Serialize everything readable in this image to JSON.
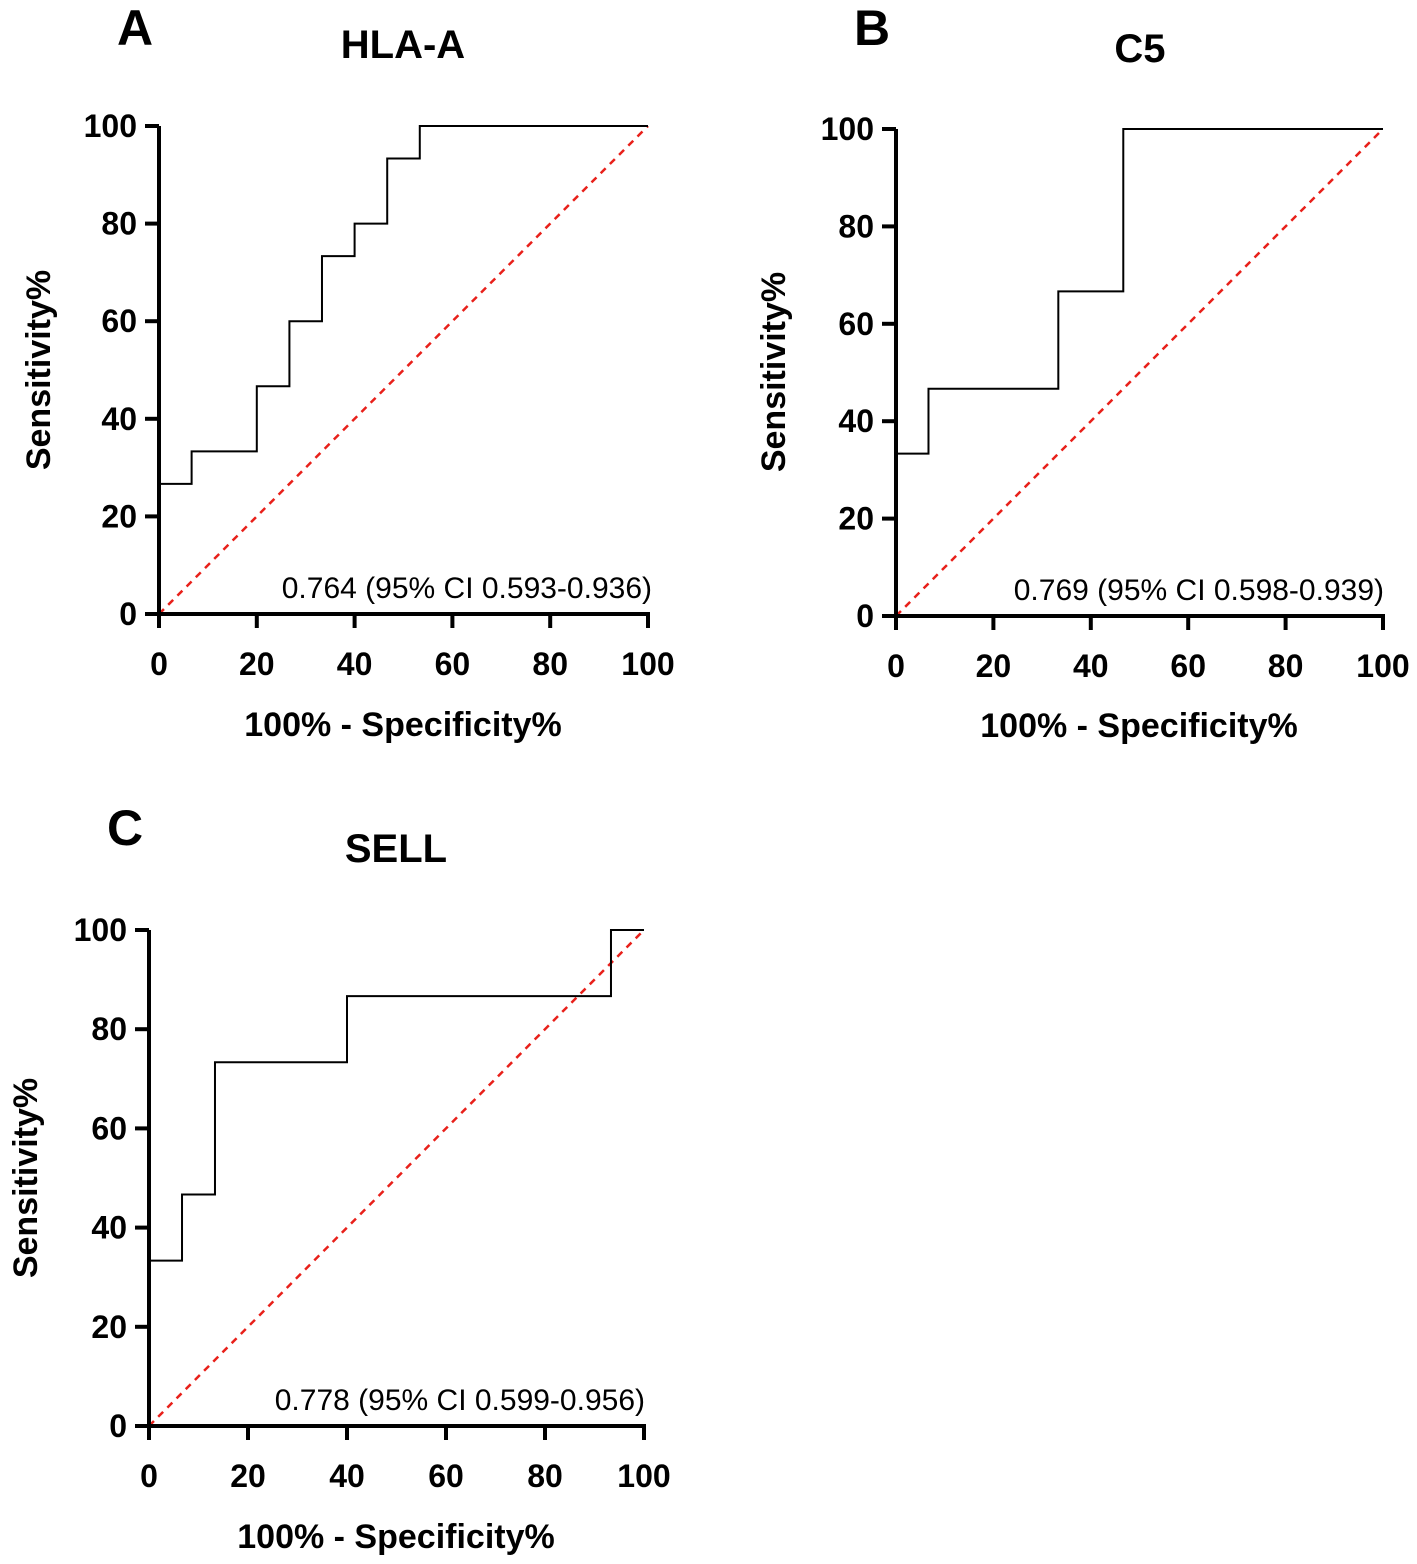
{
  "chart_data": [
    {
      "type": "line",
      "panel": "A",
      "title": "HLA-A",
      "xlabel": "100% - Specificity%",
      "ylabel": "Sensitivity%",
      "xlim": [
        0,
        100
      ],
      "ylim": [
        0,
        100
      ],
      "xticks": [
        "0",
        "20",
        "40",
        "60",
        "80",
        "100"
      ],
      "yticks": [
        "0",
        "20",
        "40",
        "60",
        "80",
        "100"
      ],
      "annotation": "0.764 (95% CI 0.593-0.936)",
      "series": [
        {
          "name": "ROC curve",
          "color": "#000000",
          "style": "step",
          "x": [
            0,
            0,
            6.67,
            6.67,
            20,
            20,
            26.67,
            26.67,
            33.33,
            33.33,
            40,
            40,
            46.67,
            46.67,
            53.33,
            53.33,
            100
          ],
          "y": [
            0,
            26.67,
            26.67,
            33.33,
            33.33,
            46.67,
            46.67,
            60,
            60,
            73.33,
            73.33,
            80,
            80,
            93.33,
            93.33,
            100,
            100
          ]
        },
        {
          "name": "Reference line",
          "color": "#e8201a",
          "style": "dashed",
          "x": [
            0,
            100
          ],
          "y": [
            0,
            100
          ]
        }
      ]
    },
    {
      "type": "line",
      "panel": "B",
      "title": "C5",
      "xlabel": "100% - Specificity%",
      "ylabel": "Sensitivity%",
      "xlim": [
        0,
        100
      ],
      "ylim": [
        0,
        100
      ],
      "xticks": [
        "0",
        "20",
        "40",
        "60",
        "80",
        "100"
      ],
      "yticks": [
        "0",
        "20",
        "40",
        "60",
        "80",
        "100"
      ],
      "annotation": "0.769 (95% CI 0.598-0.939)",
      "series": [
        {
          "name": "ROC curve",
          "color": "#000000",
          "style": "step",
          "x": [
            0,
            0,
            6.67,
            6.67,
            33.33,
            33.33,
            46.67,
            46.67,
            100
          ],
          "y": [
            0,
            33.33,
            33.33,
            46.67,
            46.67,
            66.67,
            66.67,
            100,
            100
          ]
        },
        {
          "name": "Reference line",
          "color": "#e8201a",
          "style": "dashed",
          "x": [
            0,
            100
          ],
          "y": [
            0,
            100
          ]
        }
      ]
    },
    {
      "type": "line",
      "panel": "C",
      "title": "SELL",
      "xlabel": "100% - Specificity%",
      "ylabel": "Sensitivity%",
      "xlim": [
        0,
        100
      ],
      "ylim": [
        0,
        100
      ],
      "xticks": [
        "0",
        "20",
        "40",
        "60",
        "80",
        "100"
      ],
      "yticks": [
        "0",
        "20",
        "40",
        "60",
        "80",
        "100"
      ],
      "annotation": "0.778 (95% CI 0.599-0.956)",
      "series": [
        {
          "name": "ROC curve",
          "color": "#000000",
          "style": "step",
          "x": [
            0,
            0,
            6.67,
            6.67,
            13.33,
            13.33,
            40,
            40,
            93.33,
            93.33,
            100
          ],
          "y": [
            0,
            33.33,
            33.33,
            46.67,
            46.67,
            73.33,
            73.33,
            86.67,
            86.67,
            100,
            100
          ]
        },
        {
          "name": "Reference line",
          "color": "#e8201a",
          "style": "dashed",
          "x": [
            0,
            100
          ],
          "y": [
            0,
            100
          ]
        }
      ]
    }
  ]
}
